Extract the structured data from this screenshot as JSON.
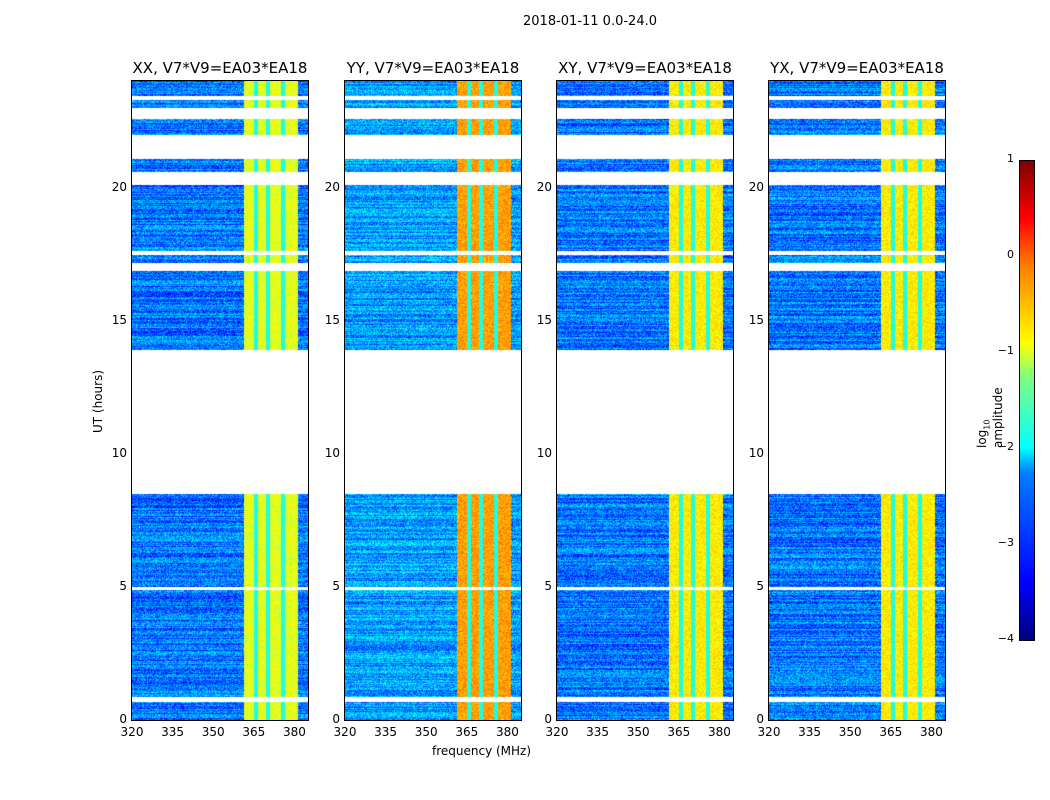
{
  "chart_data": {
    "type": "heatmap",
    "title": "2018-01-11 0.0-24.0",
    "xlabel": "frequency (MHz)",
    "ylabel": "UT (hours)",
    "xlim": [
      320,
      385
    ],
    "ylim": [
      0,
      24
    ],
    "xticks": [
      320,
      335,
      350,
      365,
      380
    ],
    "yticks": [
      0,
      5,
      10,
      15,
      20
    ],
    "panels": [
      {
        "title": "XX, V7*V9=EA03*EA18",
        "background_log_amp": -2.8,
        "band_log_amp": -1.0
      },
      {
        "title": "YY, V7*V9=EA03*EA18",
        "background_log_amp": -2.6,
        "band_log_amp": -0.4
      },
      {
        "title": "XY, V7*V9=EA03*EA18",
        "background_log_amp": -2.8,
        "band_log_amp": -0.8
      },
      {
        "title": "YX, V7*V9=EA03*EA18",
        "background_log_amp": -2.8,
        "band_log_amp": -0.8
      }
    ],
    "high_amplitude_band_MHz": [
      361,
      381
    ],
    "band_gap_channels_MHz": [
      365.5,
      370,
      375.5
    ],
    "data_gaps_UT": [
      [
        0.7,
        0.9
      ],
      [
        4.9,
        5.0
      ],
      [
        8.5,
        13.9
      ],
      [
        16.9,
        17.2
      ],
      [
        17.5,
        17.65
      ],
      [
        20.1,
        20.6
      ],
      [
        21.1,
        22.0
      ],
      [
        22.6,
        23.0
      ],
      [
        23.3,
        23.45
      ]
    ],
    "colorbar": {
      "label": "log10 amplitude",
      "label_main": "log",
      "label_sub": "10",
      "label_rest": " amplitude",
      "range": [
        -4,
        1
      ],
      "ticks": [
        "1",
        "0",
        "−1",
        "−2",
        "−3",
        "−4"
      ],
      "colormap": "jet"
    }
  }
}
